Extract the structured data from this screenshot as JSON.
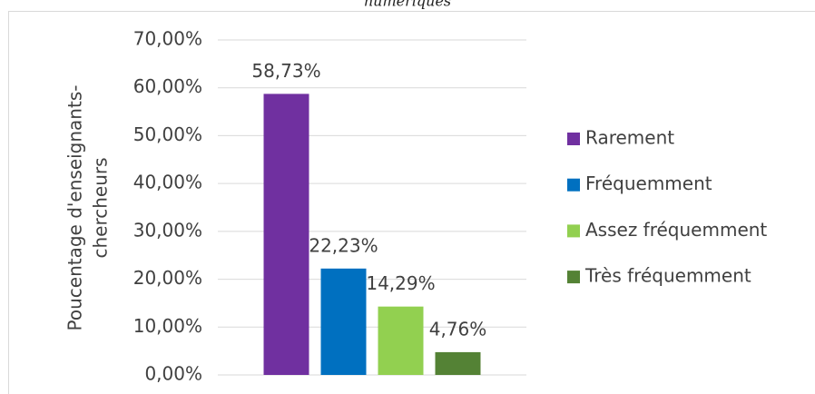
{
  "chart_data": {
    "type": "bar",
    "title": "numériques",
    "ylabel": [
      "Poucentage d'enseignants-",
      "chercheurs"
    ],
    "categories": [
      null
    ],
    "series": [
      {
        "name": "Rarement",
        "color": "#7030a0",
        "values": [
          58.73
        ],
        "value_labels": [
          "58,73%"
        ]
      },
      {
        "name": "Fréquemment",
        "color": "#0070c0",
        "values": [
          22.23
        ],
        "value_labels": [
          "22,23%"
        ]
      },
      {
        "name": "Assez fréquemment",
        "color": "#92d050",
        "values": [
          14.29
        ],
        "value_labels": [
          "14,29%"
        ]
      },
      {
        "name": "Très fréquemment",
        "color": "#548235",
        "values": [
          4.76
        ],
        "value_labels": [
          "4,76%"
        ]
      }
    ],
    "ylim": [
      0,
      70
    ],
    "yticks": [
      {
        "value": 0,
        "label": "0,00%"
      },
      {
        "value": 10,
        "label": "10,00%"
      },
      {
        "value": 20,
        "label": "20,00%"
      },
      {
        "value": 30,
        "label": "30,00%"
      },
      {
        "value": 40,
        "label": "40,00%"
      },
      {
        "value": 50,
        "label": "50,00%"
      },
      {
        "value": 60,
        "label": "60,00%"
      },
      {
        "value": 70,
        "label": "70,00%"
      }
    ],
    "grid": true,
    "legend": "right"
  }
}
